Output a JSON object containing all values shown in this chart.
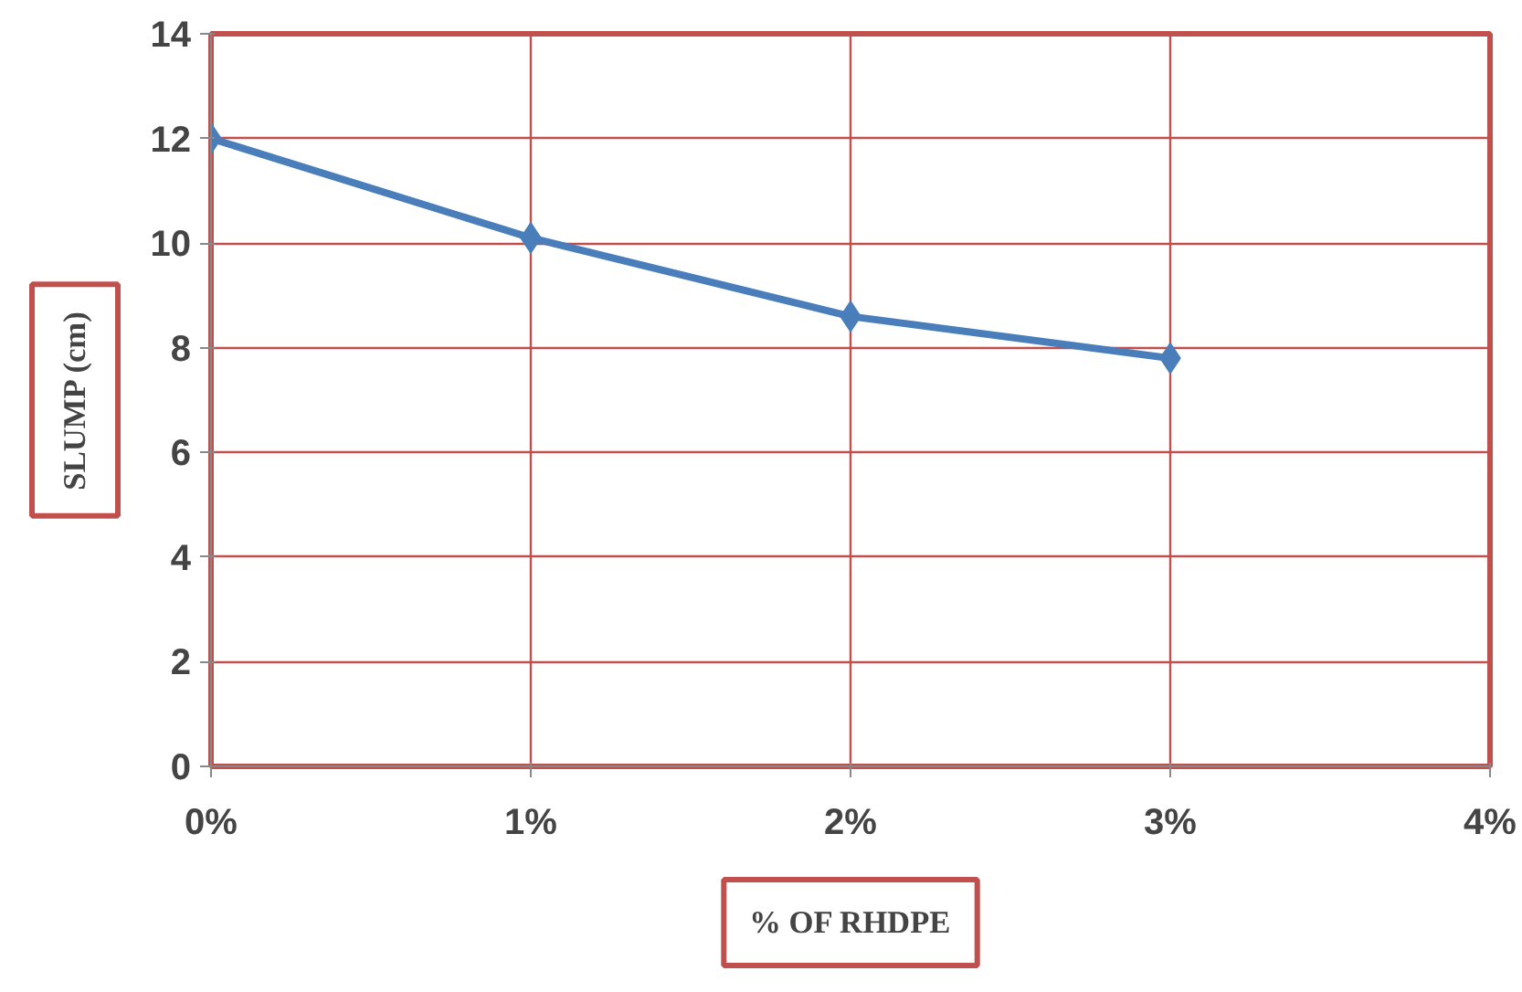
{
  "chart_data": {
    "type": "line",
    "xlabel": "% OF RHDPE",
    "ylabel": "SLUMP (cm)",
    "categories": [
      "0%",
      "1%",
      "2%",
      "3%",
      "4%"
    ],
    "series": [
      {
        "color": "#4a7ebb",
        "values": [
          12,
          10.1,
          8.6,
          7.8,
          null
        ]
      }
    ],
    "ylim": [
      0,
      14
    ],
    "yticks": [
      0,
      2,
      4,
      6,
      8,
      10,
      12,
      14
    ],
    "grid": true,
    "marker": "diamond",
    "line_style": "solid"
  }
}
